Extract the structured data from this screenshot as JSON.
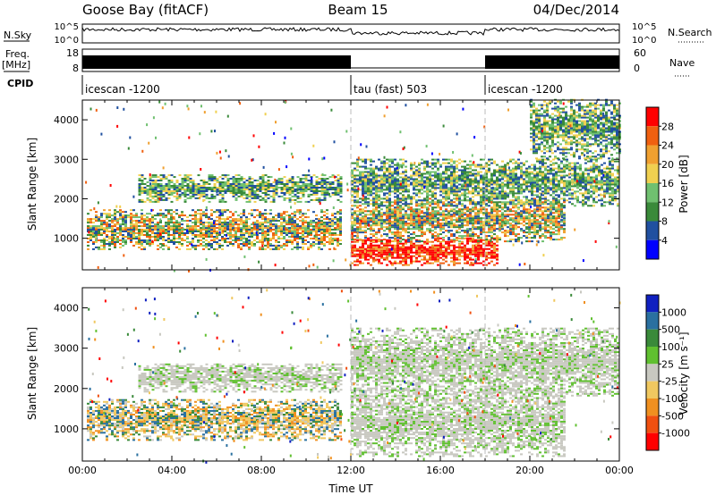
{
  "header": {
    "station": "Goose Bay (fitACF)",
    "beam": "Beam 15",
    "date": "04/Dec/2014"
  },
  "info_strips": {
    "nsky_label": "N.Sky",
    "nsky_ticks": [
      "10^5",
      "10^0"
    ],
    "nsearch_label": "N.Search",
    "nsearch_ticks": [
      "10^5",
      "10^0"
    ],
    "freq_label": "Freq.",
    "freq_unit": "[MHz]",
    "freq_ticks": [
      "18",
      "8"
    ],
    "nave_label": "Nave",
    "nave_ticks": [
      "60",
      "0"
    ],
    "cpid_label": "CPID",
    "cpid_segments": [
      {
        "label": "icescan -1200",
        "start_hour": 0,
        "end_hour": 12
      },
      {
        "label": "tau (fast) 503",
        "start_hour": 12,
        "end_hour": 18
      },
      {
        "label": "icescan -1200",
        "start_hour": 18,
        "end_hour": 24
      }
    ]
  },
  "colors": {
    "power": [
      "#0000ff",
      "#2050a0",
      "#3a8a3a",
      "#70c070",
      "#f0d050",
      "#f0a030",
      "#f06010",
      "#ff0000"
    ],
    "velocity": [
      "#ff0000",
      "#f05010",
      "#f09020",
      "#f0c860",
      "#c8c8c0",
      "#60c030",
      "#3a8a3a",
      "#2a70a0",
      "#1020c0"
    ],
    "ground_scatter": "#c8c8c0"
  },
  "chart_data": [
    {
      "type": "heatmap",
      "panel": "power",
      "ylabel": "Slant Range [km]",
      "yticks": [
        "1000",
        "2000",
        "3000",
        "4000"
      ],
      "ylim": [
        200,
        4500
      ],
      "xlim": [
        0,
        24
      ],
      "colorbar_label": "Power [dB]",
      "colorbar_ticks": [
        "4",
        "8",
        "12",
        "16",
        "20",
        "24",
        "28"
      ],
      "colorbar_range": [
        0,
        32
      ],
      "regions": [
        {
          "start_hour": 0.2,
          "end_hour": 11.5,
          "range_min": 700,
          "range_max": 1700,
          "level": "mid"
        },
        {
          "start_hour": 2.5,
          "end_hour": 11.5,
          "range_min": 1900,
          "range_max": 2600,
          "level": "low"
        },
        {
          "start_hour": 12.0,
          "end_hour": 18.5,
          "range_min": 300,
          "range_max": 1000,
          "level": "high"
        },
        {
          "start_hour": 12.0,
          "end_hour": 21.5,
          "range_min": 900,
          "range_max": 2000,
          "level": "mid"
        },
        {
          "start_hour": 12.0,
          "end_hour": 24.0,
          "range_min": 1800,
          "range_max": 3000,
          "level": "low"
        },
        {
          "start_hour": 20.0,
          "end_hour": 24.0,
          "range_min": 3000,
          "range_max": 4500,
          "level": "low"
        }
      ]
    },
    {
      "type": "heatmap",
      "panel": "velocity",
      "ylabel": "Slant Range [km]",
      "yticks": [
        "1000",
        "2000",
        "3000",
        "4000"
      ],
      "ylim": [
        200,
        4500
      ],
      "xlabel": "Time UT",
      "xticks": [
        "00:00",
        "04:00",
        "08:00",
        "12:00",
        "16:00",
        "20:00",
        "00:00"
      ],
      "xlim": [
        0,
        24
      ],
      "colorbar_label": "Velocity [m s⁻¹]",
      "colorbar_ticks": [
        "1000",
        "500",
        "100",
        "25",
        "-25",
        "-100",
        "-500",
        "-1000"
      ],
      "regions": [
        {
          "start_hour": 0.2,
          "end_hour": 11.5,
          "range_min": 700,
          "range_max": 1700,
          "level": "negative-small"
        },
        {
          "start_hour": 2.5,
          "end_hour": 11.5,
          "range_min": 1900,
          "range_max": 2600,
          "level": "ground"
        },
        {
          "start_hour": 12.0,
          "end_hour": 21.5,
          "range_min": 300,
          "range_max": 2000,
          "level": "ground"
        },
        {
          "start_hour": 12.0,
          "end_hour": 24.0,
          "range_min": 1800,
          "range_max": 3500,
          "level": "ground"
        }
      ]
    }
  ]
}
